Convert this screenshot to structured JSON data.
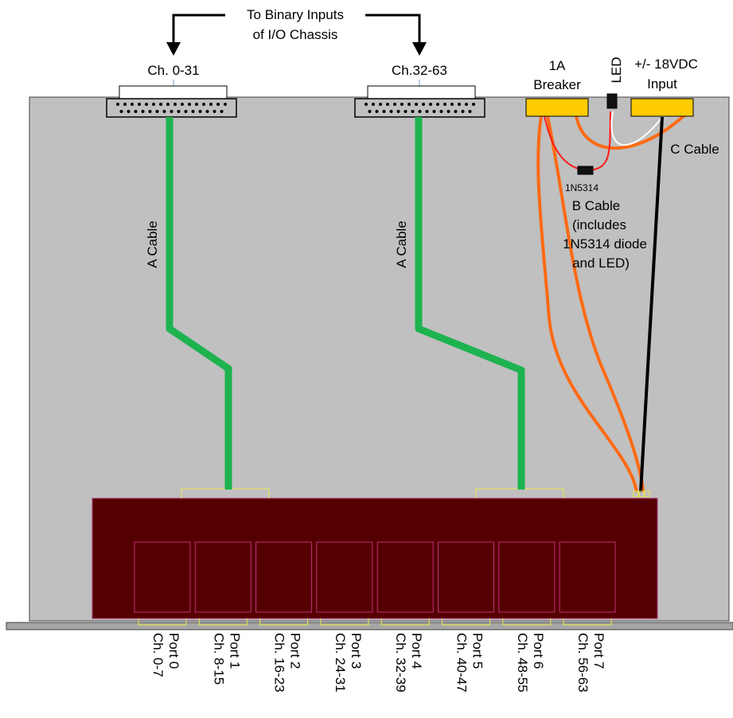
{
  "header": {
    "line1": "To Binary Inputs",
    "line2": "of I/O Chassis"
  },
  "connectors": {
    "left_label": "Ch. 0-31",
    "right_label": "Ch.32-63"
  },
  "power": {
    "breaker_line1": "1A",
    "breaker_line2": "Breaker",
    "led_label": "LED",
    "input_line1": "+/- 18VDC",
    "input_line2": "Input"
  },
  "cables": {
    "a_cable_left": "A Cable",
    "a_cable_right": "A Cable",
    "c_cable": "C Cable",
    "diode_label": "1N5314",
    "b_cable_lines": [
      "B Cable",
      "(includes",
      "1N5314 diode",
      "and LED)"
    ]
  },
  "ports": [
    {
      "port": "Port 0",
      "channels": "Ch. 0-7"
    },
    {
      "port": "Port 1",
      "channels": "Ch. 8-15"
    },
    {
      "port": "Port 2",
      "channels": "Ch. 16-23"
    },
    {
      "port": "Port 3",
      "channels": "Ch. 24-31"
    },
    {
      "port": "Port 4",
      "channels": "Ch. 32-39"
    },
    {
      "port": "Port 5",
      "channels": "Ch. 40-47"
    },
    {
      "port": "Port 6",
      "channels": "Ch. 48-55"
    },
    {
      "port": "Port 7",
      "channels": "Ch. 56-63"
    }
  ],
  "colors": {
    "chassis": "#c0c0c0",
    "board": "#550000",
    "a_cable": "#1db34f",
    "b_cable": "#ff6a13",
    "breaker": "#ffcc00"
  }
}
